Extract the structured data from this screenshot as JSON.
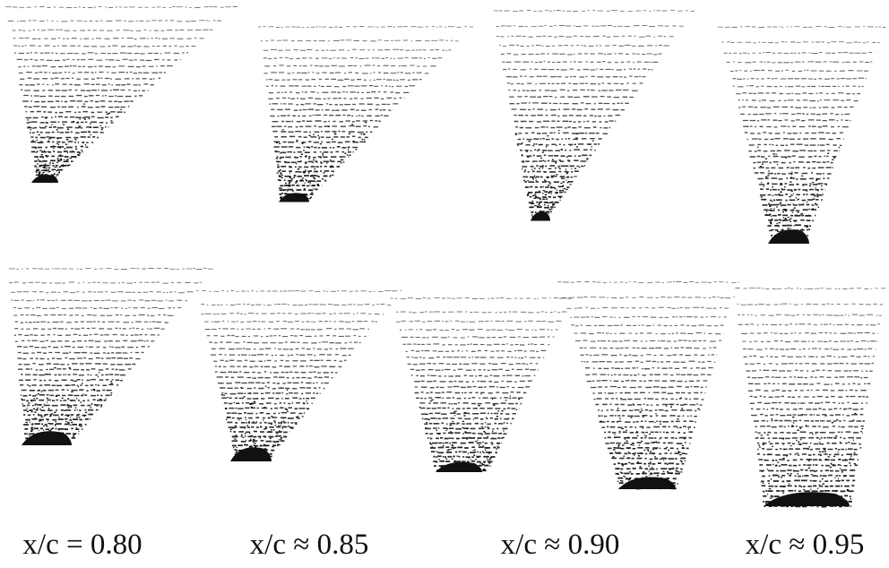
{
  "figure": {
    "ink_color": "#111111",
    "background_color": "#ffffff",
    "labels": [
      "x/c = 0.80",
      "x/c ≈ 0.85",
      "x/c ≈ 0.90",
      "x/c ≈ 0.95"
    ]
  }
}
